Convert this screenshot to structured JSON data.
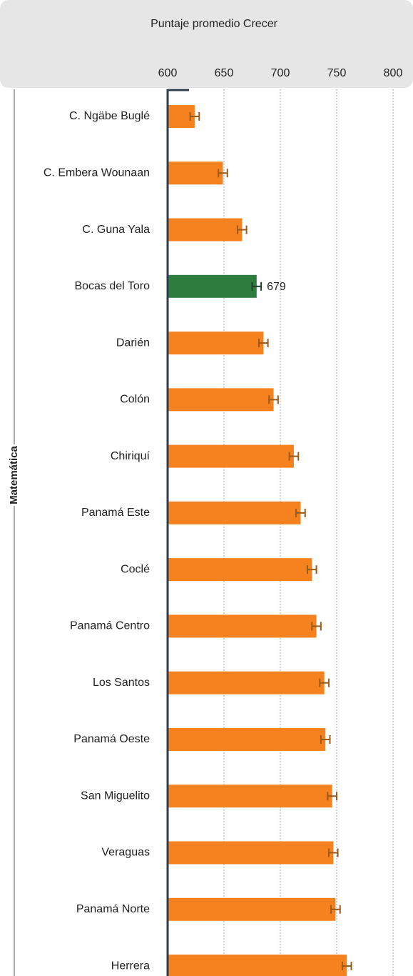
{
  "chart_data": {
    "type": "bar",
    "orientation": "horizontal",
    "title": "Puntaje promedio Crecer",
    "group_label": "Matemática",
    "categories": [
      "C. Ngäbe Buglé",
      "C. Embera Wounaan",
      "C. Guna Yala",
      "Bocas del Toro",
      "Darién",
      "Colón",
      "Chiriquí",
      "Panamá Este",
      "Coclé",
      "Panamá Centro",
      "Los Santos",
      "Panamá Oeste",
      "San Miguelito",
      "Veraguas",
      "Panamá Norte",
      "Herrera"
    ],
    "values": [
      624,
      649,
      666,
      679,
      685,
      694,
      712,
      718,
      728,
      732,
      739,
      740,
      746,
      747,
      749,
      759
    ],
    "errors": [
      4,
      4,
      4,
      4,
      4,
      4,
      4,
      4,
      4,
      4,
      4,
      4,
      4,
      4,
      4,
      4
    ],
    "color": "#f5821f",
    "highlight_color": "#2e7d3e",
    "error_color": "#9a5a18",
    "highlight": 3,
    "xlim": [
      600,
      800
    ],
    "xticks": [
      600,
      650,
      700,
      750,
      800
    ],
    "grid": true
  }
}
